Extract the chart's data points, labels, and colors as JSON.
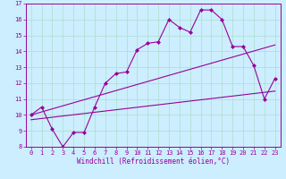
{
  "xlabel": "Windchill (Refroidissement éolien,°C)",
  "bg_color": "#cceeff",
  "line_color": "#990099",
  "grid_color": "#aaddcc",
  "xlim": [
    -0.5,
    23.5
  ],
  "ylim": [
    8,
    17
  ],
  "xticks": [
    0,
    1,
    2,
    3,
    4,
    5,
    6,
    7,
    8,
    9,
    10,
    11,
    12,
    13,
    14,
    15,
    16,
    17,
    18,
    19,
    20,
    21,
    22,
    23
  ],
  "yticks": [
    8,
    9,
    10,
    11,
    12,
    13,
    14,
    15,
    16,
    17
  ],
  "line1_x": [
    0,
    1,
    2,
    3,
    4,
    5,
    6,
    7,
    8,
    9,
    10,
    11,
    12,
    13,
    14,
    15,
    16,
    17,
    18,
    19,
    20,
    21,
    22,
    23
  ],
  "line1_y": [
    10.0,
    10.5,
    9.1,
    8.0,
    8.9,
    8.9,
    10.5,
    12.0,
    12.6,
    12.7,
    14.1,
    14.5,
    14.6,
    16.0,
    15.5,
    15.2,
    16.6,
    16.6,
    16.0,
    14.3,
    14.3,
    13.1,
    11.0,
    12.3
  ],
  "line2_x": [
    0,
    23
  ],
  "line2_y": [
    9.7,
    11.5
  ],
  "line3_x": [
    0,
    23
  ],
  "line3_y": [
    10.0,
    14.4
  ],
  "xlabel_fontsize": 5.5,
  "tick_fontsize": 5.0
}
